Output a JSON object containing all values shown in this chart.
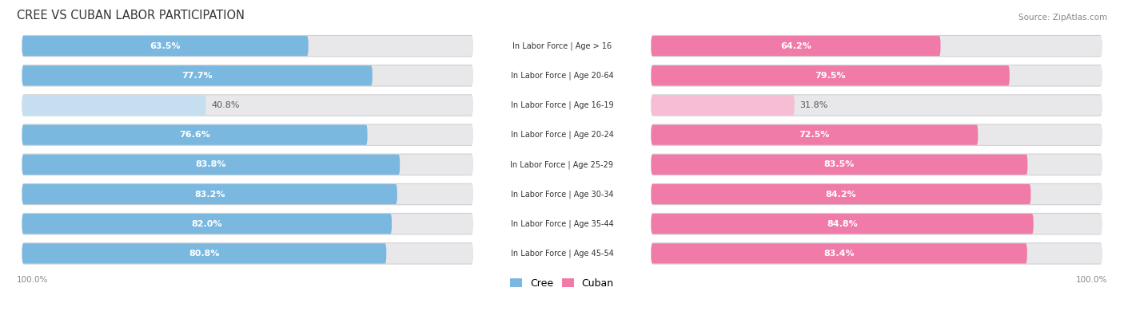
{
  "title": "CREE VS CUBAN LABOR PARTICIPATION",
  "source": "Source: ZipAtlas.com",
  "categories": [
    "In Labor Force | Age > 16",
    "In Labor Force | Age 20-64",
    "In Labor Force | Age 16-19",
    "In Labor Force | Age 20-24",
    "In Labor Force | Age 25-29",
    "In Labor Force | Age 30-34",
    "In Labor Force | Age 35-44",
    "In Labor Force | Age 45-54"
  ],
  "cree_values": [
    63.5,
    77.7,
    40.8,
    76.6,
    83.8,
    83.2,
    82.0,
    80.8
  ],
  "cuban_values": [
    64.2,
    79.5,
    31.8,
    72.5,
    83.5,
    84.2,
    84.8,
    83.4
  ],
  "cree_color": "#7ab8e0",
  "cree_color_light": "#c5dff0",
  "cuban_color": "#f07aa8",
  "cuban_color_light": "#f7bdd4",
  "bar_bg_color": "#e8e8ea",
  "bar_bg_shadow": "#d0d0d4",
  "max_value": 100.0,
  "figsize": [
    14.06,
    3.95
  ],
  "dpi": 100
}
